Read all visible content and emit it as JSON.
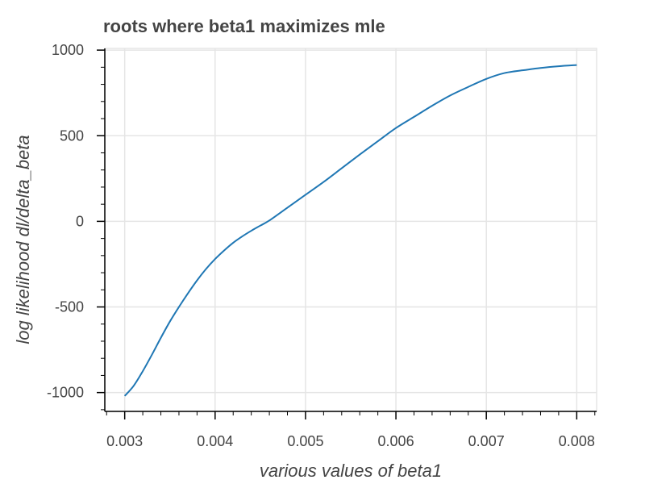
{
  "chart_data": {
    "type": "line",
    "title": "roots where beta1 maximizes mle",
    "xlabel": "various values of beta1",
    "ylabel": "log likelihood dl/delta_beta",
    "xlim": [
      0.00278,
      0.00822
    ],
    "ylim": [
      -1110,
      1010
    ],
    "xticks": [
      {
        "value": 0.003,
        "label": "0.003"
      },
      {
        "value": 0.004,
        "label": "0.004"
      },
      {
        "value": 0.005,
        "label": "0.005"
      },
      {
        "value": 0.006,
        "label": "0.006"
      },
      {
        "value": 0.007,
        "label": "0.007"
      },
      {
        "value": 0.008,
        "label": "0.008"
      }
    ],
    "yticks": [
      {
        "value": -1000,
        "label": "-1000"
      },
      {
        "value": -500,
        "label": "-500"
      },
      {
        "value": 0,
        "label": "0"
      },
      {
        "value": 500,
        "label": "500"
      },
      {
        "value": 1000,
        "label": "1000"
      }
    ],
    "grid": true,
    "line_color": "#1f77b4",
    "series": [
      {
        "x": [
          0.003,
          0.0031,
          0.0032,
          0.0033,
          0.0034,
          0.0035,
          0.0036,
          0.0037,
          0.0038,
          0.0039,
          0.004,
          0.0041,
          0.0042,
          0.0043,
          0.0044,
          0.0045,
          0.0046,
          0.0048,
          0.005,
          0.0052,
          0.0054,
          0.0056,
          0.0058,
          0.006,
          0.0062,
          0.0064,
          0.0066,
          0.0068,
          0.007,
          0.0072,
          0.0074,
          0.0076,
          0.0078,
          0.008
        ],
        "y": [
          -1020,
          -960,
          -875,
          -780,
          -680,
          -585,
          -500,
          -420,
          -345,
          -278,
          -220,
          -170,
          -125,
          -88,
          -55,
          -25,
          5,
          80,
          155,
          230,
          310,
          390,
          468,
          545,
          610,
          675,
          735,
          785,
          832,
          866,
          882,
          896,
          906,
          913
        ]
      }
    ]
  }
}
